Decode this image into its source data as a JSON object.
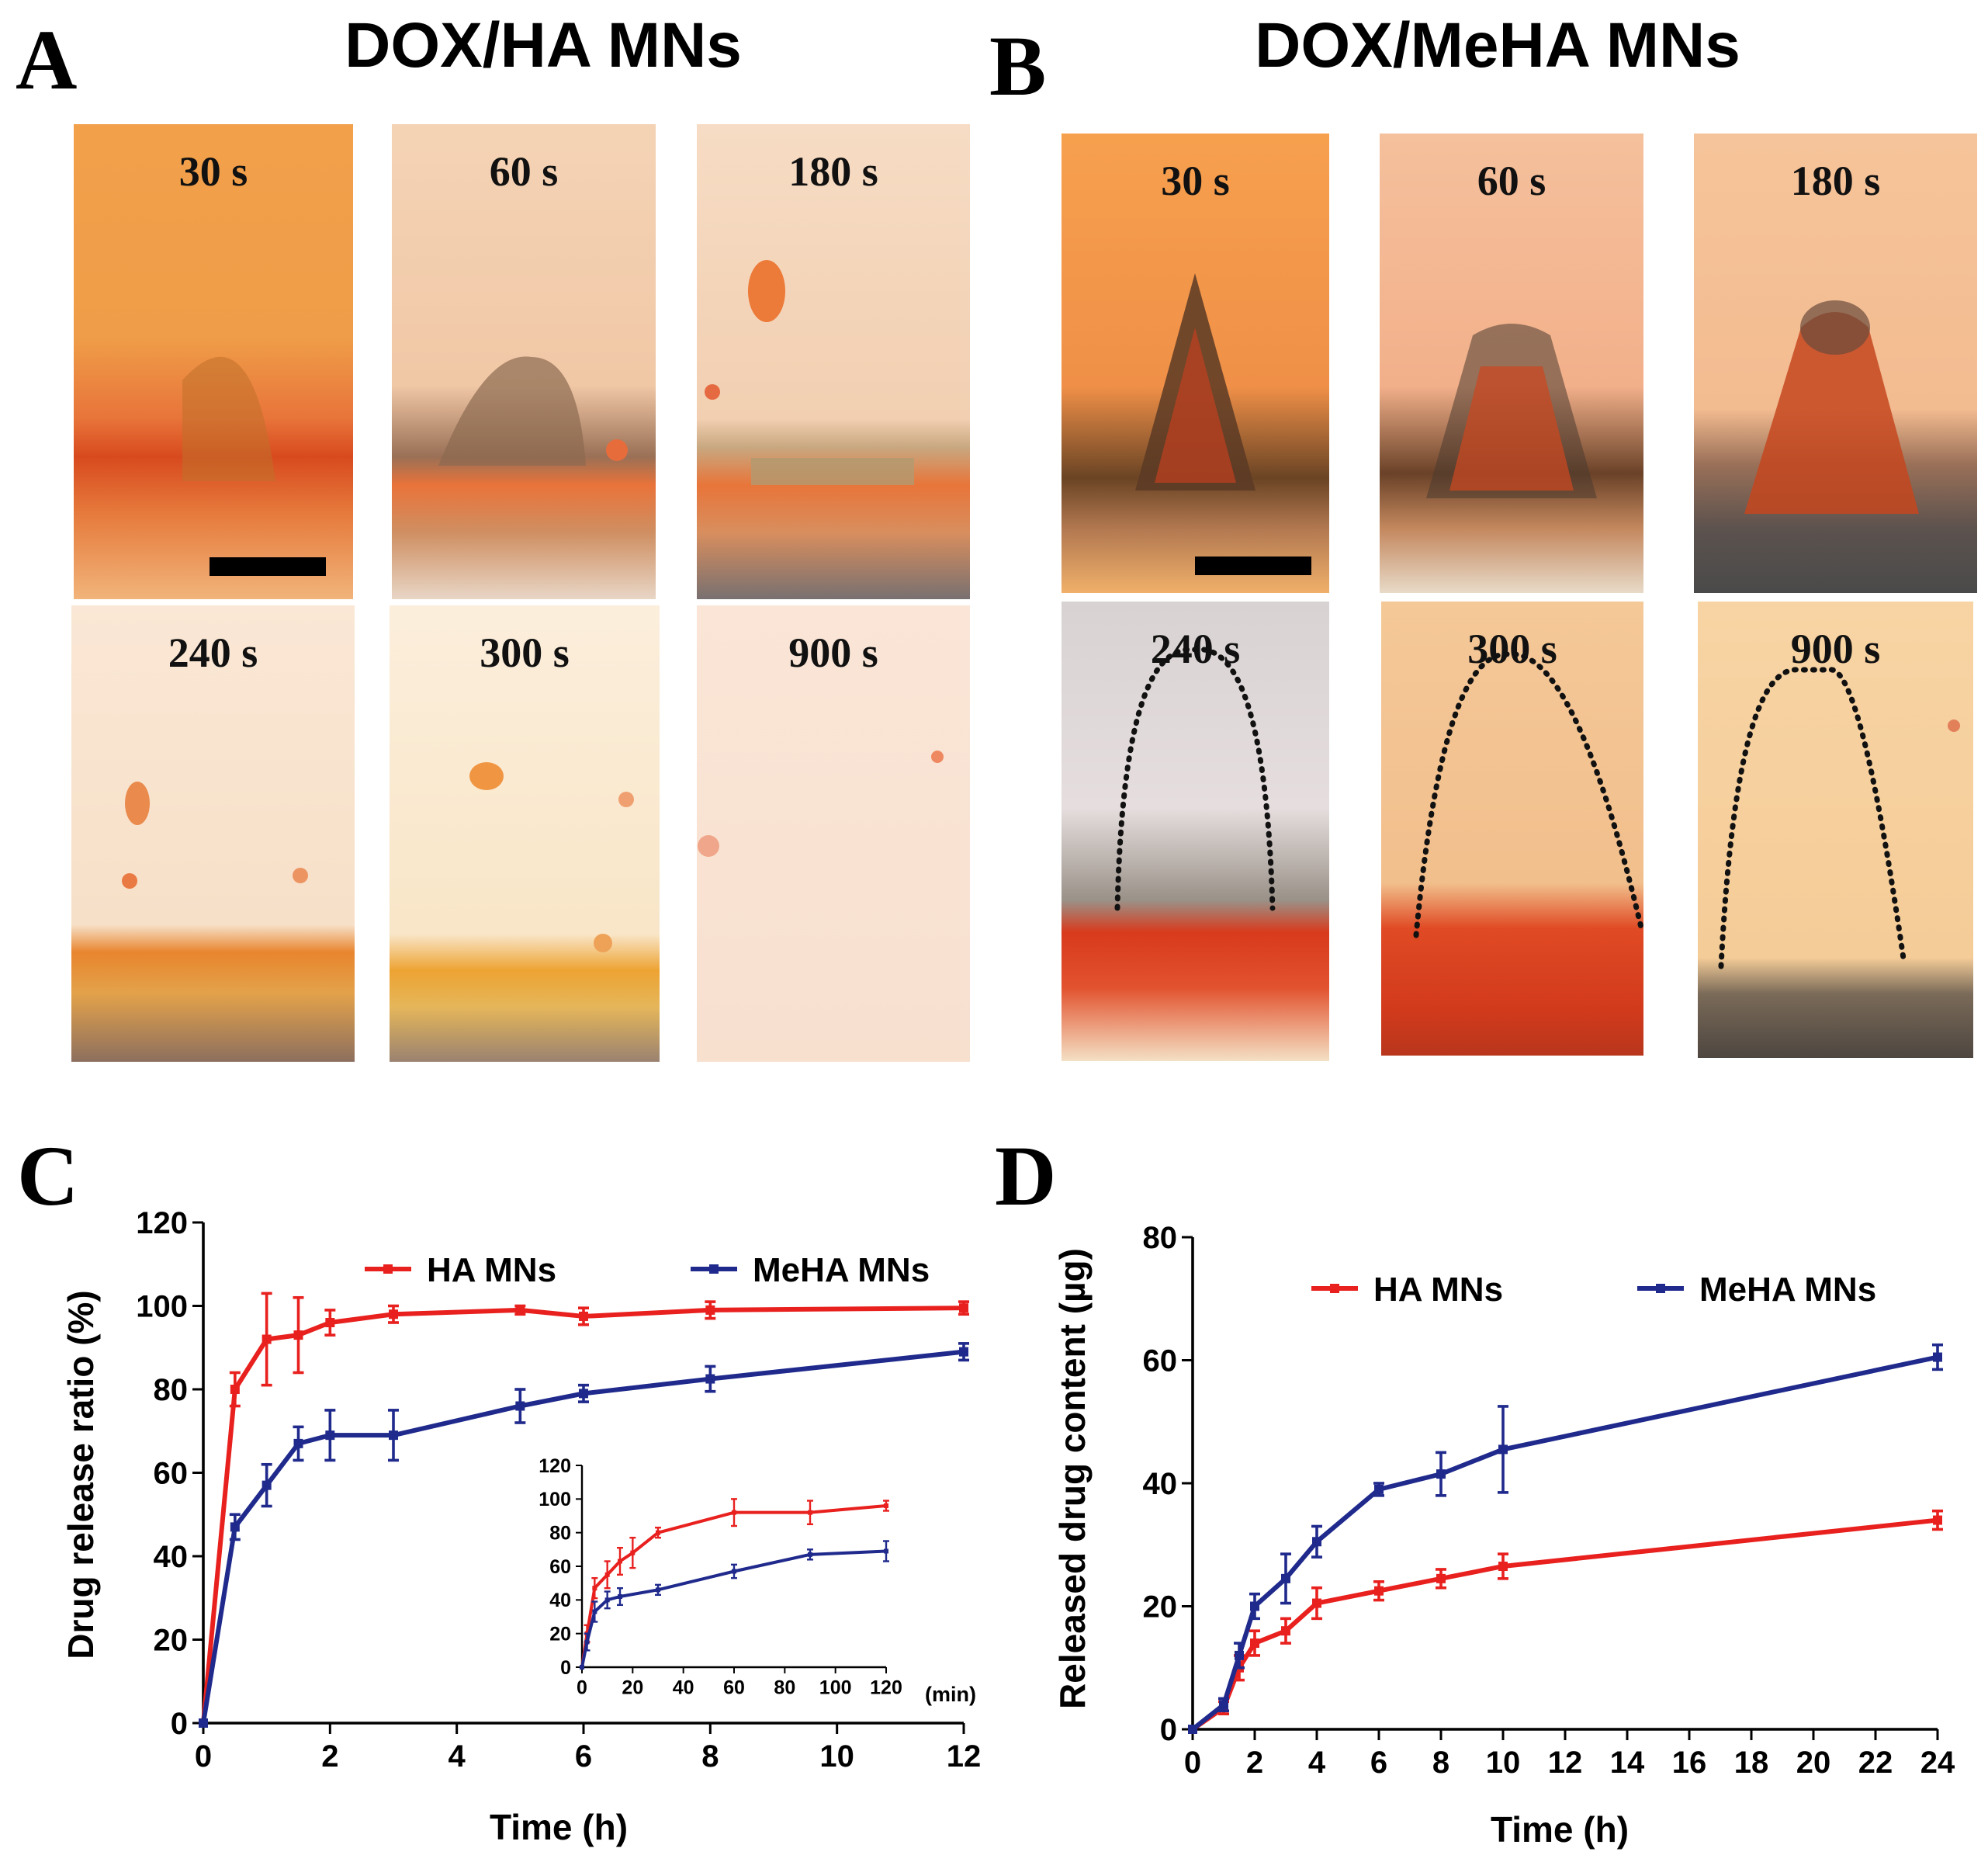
{
  "panels": {
    "A": {
      "letter": "A",
      "title": "DOX/HA MNs",
      "images": [
        "30 s",
        "60 s",
        "180 s",
        "240 s",
        "300 s",
        "900 s"
      ]
    },
    "B": {
      "letter": "B",
      "title": "DOX/MeHA MNs",
      "images": [
        "30 s",
        "60 s",
        "180 s",
        "240 s",
        "300 s",
        "900 s"
      ]
    },
    "C": {
      "letter": "C"
    },
    "D": {
      "letter": "D"
    }
  },
  "colors": {
    "ha": "#e8201e",
    "meha": "#1f2a8c"
  },
  "chart_data": [
    {
      "id": "C-main",
      "type": "line",
      "xlabel": "Time (h)",
      "ylabel": "Drug release ratio (%)",
      "xlim": [
        0,
        12
      ],
      "ylim": [
        0,
        120
      ],
      "xticks": [
        0,
        2,
        4,
        6,
        8,
        10,
        12
      ],
      "yticks": [
        0,
        20,
        40,
        60,
        80,
        100,
        120
      ],
      "legend_position": "top",
      "series": [
        {
          "name": "HA MNs",
          "color": "#e8201e",
          "x": [
            0,
            0.5,
            1,
            1.5,
            2,
            3,
            5,
            6,
            8,
            12
          ],
          "y": [
            0,
            80,
            92,
            93,
            96,
            98,
            99,
            97.5,
            99,
            99.5
          ],
          "err": [
            0,
            4,
            11,
            9,
            3,
            2,
            1,
            2,
            2,
            1.5
          ]
        },
        {
          "name": "MeHA MNs",
          "color": "#1f2a8c",
          "x": [
            0,
            0.5,
            1,
            1.5,
            2,
            3,
            5,
            6,
            8,
            12
          ],
          "y": [
            0,
            47,
            57,
            67,
            69,
            69,
            76,
            79,
            82.5,
            89
          ],
          "err": [
            0,
            3,
            5,
            4,
            6,
            6,
            4,
            2,
            3,
            2
          ]
        }
      ]
    },
    {
      "id": "C-inset",
      "type": "line",
      "xlabel": "(min)",
      "ylabel": "",
      "xlim": [
        0,
        120
      ],
      "ylim": [
        0,
        120
      ],
      "xticks": [
        0,
        20,
        40,
        60,
        80,
        100,
        120
      ],
      "yticks": [
        0,
        20,
        40,
        60,
        80,
        100,
        120
      ],
      "series": [
        {
          "name": "HA MNs",
          "color": "#e8201e",
          "x": [
            0,
            2,
            5,
            10,
            15,
            20,
            30,
            60,
            90,
            120
          ],
          "y": [
            0,
            20,
            47,
            55,
            63,
            68,
            80,
            92,
            92,
            96
          ],
          "err": [
            0,
            5,
            6,
            8,
            8,
            9,
            3,
            8,
            7,
            3
          ]
        },
        {
          "name": "MeHA MNs",
          "color": "#1f2a8c",
          "x": [
            0,
            2,
            5,
            10,
            15,
            30,
            60,
            90,
            120
          ],
          "y": [
            0,
            15,
            33,
            40,
            42,
            46,
            57,
            67,
            69
          ],
          "err": [
            0,
            5,
            6,
            5,
            5,
            3,
            4,
            3,
            6
          ]
        }
      ]
    },
    {
      "id": "D-main",
      "type": "line",
      "xlabel": "Time (h)",
      "ylabel": "Released drug content (µg)",
      "xlim": [
        0,
        24
      ],
      "ylim": [
        0,
        80
      ],
      "xticks": [
        0,
        2,
        4,
        6,
        8,
        10,
        12,
        14,
        16,
        18,
        20,
        22,
        24
      ],
      "yticks": [
        0,
        20,
        40,
        60,
        80
      ],
      "legend_position": "top",
      "series": [
        {
          "name": "HA MNs",
          "color": "#e8201e",
          "x": [
            0,
            1,
            1.5,
            2,
            3,
            4,
            6,
            8,
            10,
            24
          ],
          "y": [
            0,
            3.5,
            10,
            14,
            16,
            20.5,
            22.5,
            24.5,
            26.5,
            34
          ],
          "err": [
            0,
            1,
            2,
            2,
            2,
            2.5,
            1.5,
            1.5,
            2,
            1.5
          ]
        },
        {
          "name": "MeHA MNs",
          "color": "#1f2a8c",
          "x": [
            0,
            1,
            1.5,
            2,
            3,
            4,
            6,
            8,
            10,
            24
          ],
          "y": [
            0,
            4,
            12,
            20,
            24.5,
            30.5,
            39,
            41.5,
            45.5,
            60.5
          ],
          "err": [
            0,
            1,
            2,
            2,
            4,
            2.5,
            1,
            3.5,
            7,
            2
          ]
        }
      ]
    }
  ]
}
